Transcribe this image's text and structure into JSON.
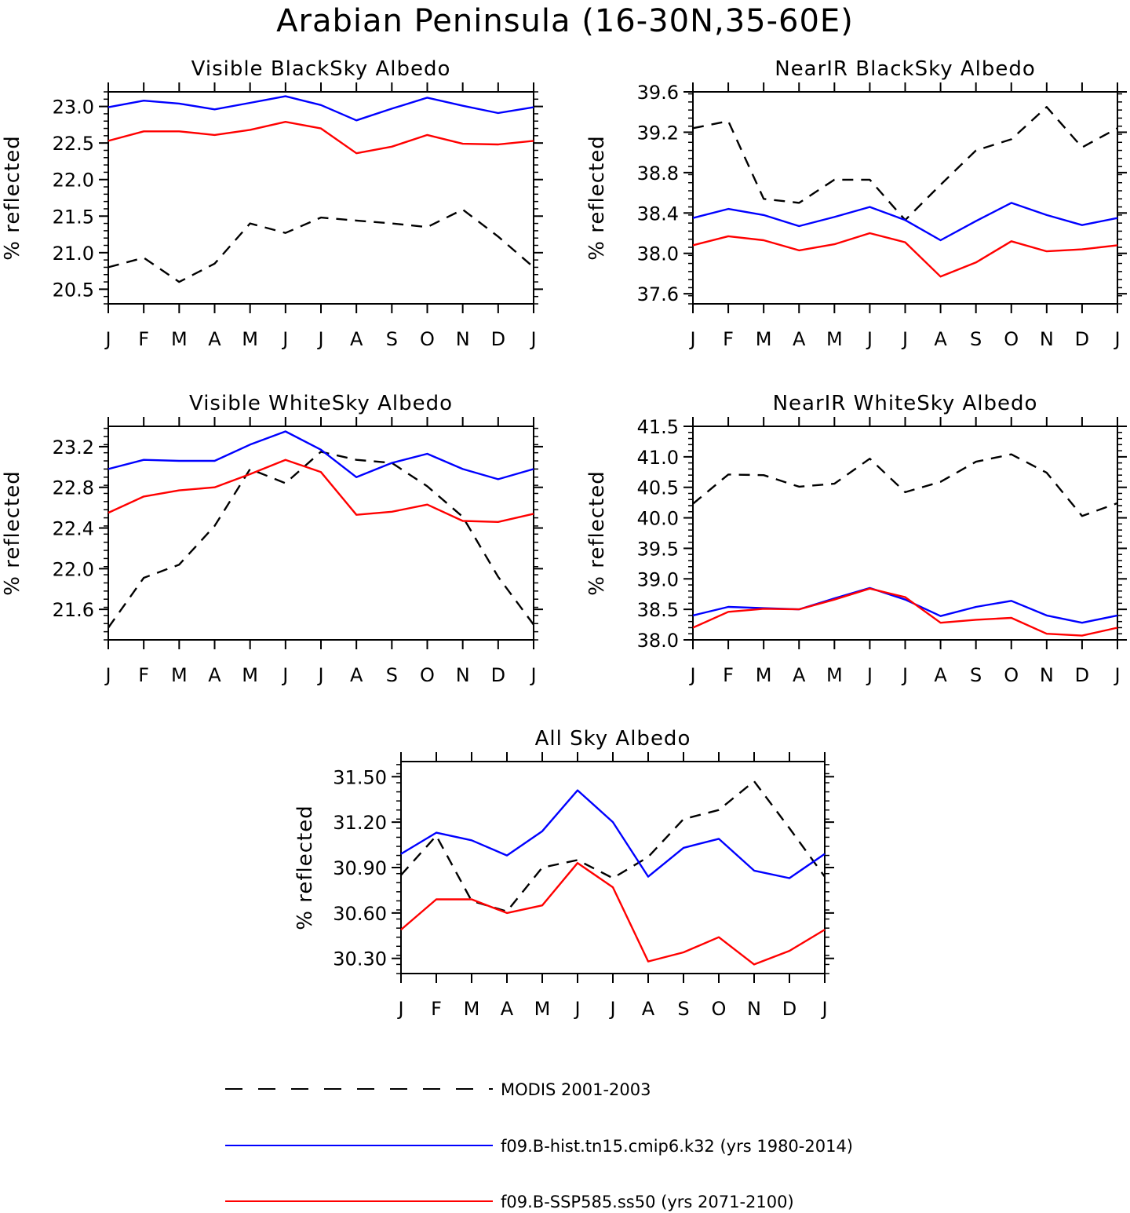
{
  "figure": {
    "title": "Arabian Peninsula (16-30N,35-60E)"
  },
  "style": {
    "modis_color": "#000000",
    "hist_color": "#0000ff",
    "ssp_color": "#ff0000",
    "modis_dash": "dashed"
  },
  "legend": {
    "entries": [
      {
        "label": "MODIS 2001-2003",
        "style": "dashed",
        "color": "#000000"
      },
      {
        "label": "f09.B-hist.tn15.cmip6.k32 (yrs 1980-2014)",
        "style": "solid",
        "color": "#0000ff"
      },
      {
        "label": "f09.B-SSP585.ss50 (yrs 2071-2100)",
        "style": "solid",
        "color": "#ff0000"
      }
    ]
  },
  "chart_data": [
    {
      "type": "line",
      "title": "Visible BlackSky Albedo",
      "ylabel": "% reflected",
      "categories": [
        "J",
        "F",
        "M",
        "A",
        "M",
        "J",
        "J",
        "A",
        "S",
        "O",
        "N",
        "D",
        "J"
      ],
      "ylim": [
        20.3,
        23.2
      ],
      "yticks": [
        "20.5",
        "21.0",
        "21.5",
        "22.0",
        "22.5",
        "23.0"
      ],
      "series": [
        {
          "name": "MODIS 2001-2003",
          "values": [
            20.8,
            20.93,
            20.6,
            20.85,
            21.4,
            21.27,
            21.48,
            21.44,
            21.4,
            21.35,
            21.59,
            21.22,
            20.8
          ]
        },
        {
          "name": "f09.B-hist.tn15.cmip6.k32 (yrs 1980-2014)",
          "values": [
            22.99,
            23.08,
            23.04,
            22.96,
            23.05,
            23.14,
            23.02,
            22.81,
            22.97,
            23.12,
            23.01,
            22.91,
            22.99
          ]
        },
        {
          "name": "f09.B-SSP585.ss50 (yrs 2071-2100)",
          "values": [
            22.53,
            22.66,
            22.66,
            22.61,
            22.68,
            22.79,
            22.7,
            22.36,
            22.45,
            22.61,
            22.49,
            22.48,
            22.53
          ]
        }
      ]
    },
    {
      "type": "line",
      "title": "NearIR BlackSky Albedo",
      "ylabel": "% reflected",
      "categories": [
        "J",
        "F",
        "M",
        "A",
        "M",
        "J",
        "J",
        "A",
        "S",
        "O",
        "N",
        "D",
        "J"
      ],
      "ylim": [
        37.5,
        39.6
      ],
      "yticks": [
        "37.6",
        "38.0",
        "38.4",
        "38.8",
        "39.2",
        "39.6"
      ],
      "series": [
        {
          "name": "MODIS 2001-2003",
          "values": [
            39.24,
            39.31,
            38.54,
            38.5,
            38.73,
            38.73,
            38.33,
            38.68,
            39.02,
            39.13,
            39.45,
            39.05,
            39.24
          ]
        },
        {
          "name": "f09.B-hist.tn15.cmip6.k32 (yrs 1980-2014)",
          "values": [
            38.35,
            38.44,
            38.38,
            38.27,
            38.36,
            38.46,
            38.33,
            38.13,
            38.32,
            38.5,
            38.38,
            38.28,
            38.35
          ]
        },
        {
          "name": "f09.B-SSP585.ss50 (yrs 2071-2100)",
          "values": [
            38.08,
            38.17,
            38.13,
            38.03,
            38.09,
            38.2,
            38.11,
            37.77,
            37.91,
            38.12,
            38.02,
            38.04,
            38.08
          ]
        }
      ]
    },
    {
      "type": "line",
      "title": "Visible WhiteSky Albedo",
      "ylabel": "% reflected",
      "categories": [
        "J",
        "F",
        "M",
        "A",
        "M",
        "J",
        "J",
        "A",
        "S",
        "O",
        "N",
        "D",
        "J"
      ],
      "ylim": [
        21.3,
        23.4
      ],
      "yticks": [
        "21.6",
        "22.0",
        "22.4",
        "22.8",
        "23.2"
      ],
      "series": [
        {
          "name": "MODIS 2001-2003",
          "values": [
            21.42,
            21.91,
            22.04,
            22.42,
            22.98,
            22.84,
            23.15,
            23.07,
            23.04,
            22.81,
            22.51,
            21.92,
            21.45
          ]
        },
        {
          "name": "f09.B-hist.tn15.cmip6.k32 (yrs 1980-2014)",
          "values": [
            22.98,
            23.07,
            23.06,
            23.06,
            23.22,
            23.35,
            23.17,
            22.9,
            23.04,
            23.13,
            22.98,
            22.88,
            22.98
          ]
        },
        {
          "name": "f09.B-SSP585.ss50 (yrs 2071-2100)",
          "values": [
            22.55,
            22.71,
            22.77,
            22.8,
            22.93,
            23.07,
            22.95,
            22.53,
            22.56,
            22.63,
            22.47,
            22.46,
            22.54
          ]
        }
      ]
    },
    {
      "type": "line",
      "title": "NearIR WhiteSky Albedo",
      "ylabel": "% reflected",
      "categories": [
        "J",
        "F",
        "M",
        "A",
        "M",
        "J",
        "J",
        "A",
        "S",
        "O",
        "N",
        "D",
        "J"
      ],
      "ylim": [
        38.0,
        41.5
      ],
      "yticks": [
        "38.0",
        "38.5",
        "39.0",
        "39.5",
        "40.0",
        "40.5",
        "41.0",
        "41.5"
      ],
      "series": [
        {
          "name": "MODIS 2001-2003",
          "values": [
            40.23,
            40.71,
            40.7,
            40.51,
            40.56,
            40.97,
            40.42,
            40.59,
            40.92,
            41.04,
            40.74,
            40.03,
            40.24
          ]
        },
        {
          "name": "f09.B-hist.tn15.cmip6.k32 (yrs 1980-2014)",
          "values": [
            38.4,
            38.54,
            38.52,
            38.5,
            38.68,
            38.85,
            38.66,
            38.39,
            38.54,
            38.64,
            38.4,
            38.28,
            38.4
          ]
        },
        {
          "name": "f09.B-SSP585.ss50 (yrs 2071-2100)",
          "values": [
            38.2,
            38.46,
            38.51,
            38.5,
            38.66,
            38.84,
            38.7,
            38.28,
            38.33,
            38.36,
            38.1,
            38.07,
            38.2
          ]
        }
      ]
    },
    {
      "type": "line",
      "title": "All Sky Albedo",
      "ylabel": "% reflected",
      "categories": [
        "J",
        "F",
        "M",
        "A",
        "M",
        "J",
        "J",
        "A",
        "S",
        "O",
        "N",
        "D",
        "J"
      ],
      "ylim": [
        30.2,
        31.6
      ],
      "yticks": [
        "30.30",
        "30.60",
        "30.90",
        "31.20",
        "31.50"
      ],
      "series": [
        {
          "name": "MODIS 2001-2003",
          "values": [
            30.85,
            31.11,
            30.68,
            30.61,
            30.9,
            30.95,
            30.83,
            30.97,
            31.22,
            31.28,
            31.47,
            31.16,
            30.84
          ]
        },
        {
          "name": "f09.B-hist.tn15.cmip6.k32 (yrs 1980-2014)",
          "values": [
            30.99,
            31.13,
            31.08,
            30.98,
            31.14,
            31.41,
            31.2,
            30.84,
            31.03,
            31.09,
            30.88,
            30.83,
            30.99
          ]
        },
        {
          "name": "f09.B-SSP585.ss50 (yrs 2071-2100)",
          "values": [
            30.49,
            30.69,
            30.69,
            30.6,
            30.65,
            30.93,
            30.77,
            30.28,
            30.34,
            30.44,
            30.26,
            30.35,
            30.49
          ]
        }
      ]
    }
  ]
}
